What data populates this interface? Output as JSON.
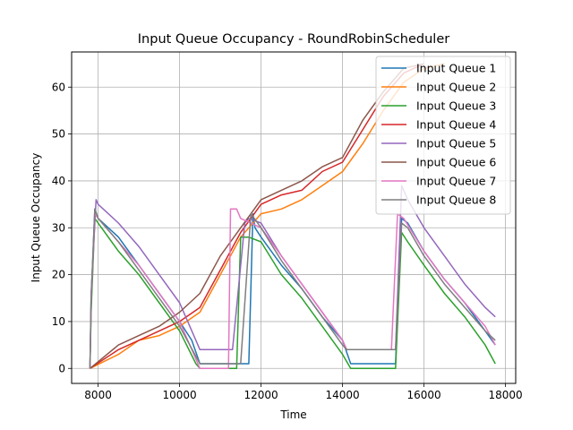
{
  "chart_data": {
    "type": "line",
    "title": "Input Queue Occupancy - RoundRobinScheduler",
    "xlabel": "Time",
    "ylabel": "Input Queue Occupancy",
    "xlim": [
      7350,
      18250
    ],
    "ylim": [
      -3.2,
      67.5
    ],
    "xticks": [
      8000,
      10000,
      12000,
      14000,
      16000,
      18000
    ],
    "yticks": [
      0,
      10,
      20,
      30,
      40,
      50,
      60
    ],
    "grid": true,
    "legend_position": "top-right",
    "series": [
      {
        "name": "Input Queue 1",
        "color": "#1f77b4",
        "points": [
          [
            7800,
            0
          ],
          [
            7830,
            15
          ],
          [
            7920,
            34
          ],
          [
            8000,
            32
          ],
          [
            8500,
            28
          ],
          [
            9000,
            22
          ],
          [
            9500,
            16
          ],
          [
            10000,
            10
          ],
          [
            10300,
            6
          ],
          [
            10500,
            1
          ],
          [
            11700,
            1
          ],
          [
            11800,
            33
          ],
          [
            11850,
            30
          ],
          [
            12000,
            28
          ],
          [
            12500,
            22
          ],
          [
            13000,
            17
          ],
          [
            13500,
            11
          ],
          [
            14000,
            6
          ],
          [
            14200,
            1
          ],
          [
            15300,
            1
          ],
          [
            15450,
            32
          ],
          [
            15600,
            31
          ],
          [
            16000,
            25
          ],
          [
            16500,
            19
          ],
          [
            17000,
            14
          ],
          [
            17500,
            8
          ],
          [
            17750,
            5
          ]
        ]
      },
      {
        "name": "Input Queue 2",
        "color": "#ff7f0e",
        "points": [
          [
            7800,
            0
          ],
          [
            8500,
            3
          ],
          [
            9000,
            6
          ],
          [
            9500,
            7
          ],
          [
            10000,
            9
          ],
          [
            10500,
            12
          ],
          [
            11000,
            20
          ],
          [
            11500,
            28
          ],
          [
            12000,
            33
          ],
          [
            12500,
            34
          ],
          [
            13000,
            36
          ],
          [
            13500,
            39
          ],
          [
            14000,
            42
          ],
          [
            14500,
            48
          ],
          [
            15000,
            55
          ],
          [
            15500,
            61
          ],
          [
            16000,
            64
          ],
          [
            16500,
            65
          ]
        ]
      },
      {
        "name": "Input Queue 3",
        "color": "#2ca02c",
        "points": [
          [
            7800,
            0
          ],
          [
            7830,
            12
          ],
          [
            7920,
            32
          ],
          [
            8000,
            31
          ],
          [
            8500,
            25
          ],
          [
            9000,
            20
          ],
          [
            9500,
            14
          ],
          [
            10000,
            8
          ],
          [
            10400,
            1
          ],
          [
            10500,
            0
          ],
          [
            11400,
            0
          ],
          [
            11500,
            28
          ],
          [
            11700,
            28
          ],
          [
            12000,
            27
          ],
          [
            12500,
            20
          ],
          [
            13000,
            15
          ],
          [
            13500,
            9
          ],
          [
            14000,
            3
          ],
          [
            14200,
            0
          ],
          [
            15300,
            0
          ],
          [
            15450,
            29
          ],
          [
            15600,
            27
          ],
          [
            16000,
            22
          ],
          [
            16500,
            16
          ],
          [
            17000,
            11
          ],
          [
            17500,
            5
          ],
          [
            17750,
            1
          ]
        ]
      },
      {
        "name": "Input Queue 4",
        "color": "#d62728",
        "points": [
          [
            7800,
            0
          ],
          [
            8500,
            4
          ],
          [
            9000,
            6
          ],
          [
            9500,
            8
          ],
          [
            10000,
            10
          ],
          [
            10500,
            13
          ],
          [
            11000,
            21
          ],
          [
            11500,
            29
          ],
          [
            12000,
            35
          ],
          [
            12500,
            37
          ],
          [
            13000,
            38
          ],
          [
            13500,
            42
          ],
          [
            14000,
            44
          ],
          [
            14500,
            51
          ],
          [
            15000,
            58
          ],
          [
            15500,
            63
          ],
          [
            16000,
            65
          ]
        ]
      },
      {
        "name": "Input Queue 5",
        "color": "#9467bd",
        "points": [
          [
            7800,
            0
          ],
          [
            7830,
            16
          ],
          [
            7950,
            36
          ],
          [
            8000,
            35
          ],
          [
            8500,
            31
          ],
          [
            9000,
            26
          ],
          [
            9500,
            20
          ],
          [
            10000,
            14
          ],
          [
            10500,
            4
          ],
          [
            11300,
            4
          ],
          [
            11600,
            31
          ],
          [
            11700,
            32
          ],
          [
            12000,
            31
          ],
          [
            12500,
            24
          ],
          [
            13000,
            18
          ],
          [
            13500,
            12
          ],
          [
            14000,
            6
          ],
          [
            14100,
            4
          ],
          [
            15300,
            4
          ],
          [
            15450,
            39
          ],
          [
            15600,
            36
          ],
          [
            16000,
            30
          ],
          [
            16500,
            24
          ],
          [
            17000,
            18
          ],
          [
            17500,
            13
          ],
          [
            17750,
            11
          ]
        ]
      },
      {
        "name": "Input Queue 6",
        "color": "#8c564b",
        "points": [
          [
            7800,
            0
          ],
          [
            8500,
            5
          ],
          [
            9000,
            7
          ],
          [
            9500,
            9
          ],
          [
            10000,
            12
          ],
          [
            10500,
            16
          ],
          [
            11000,
            24
          ],
          [
            11500,
            30
          ],
          [
            12000,
            36
          ],
          [
            12500,
            38
          ],
          [
            13000,
            40
          ],
          [
            13500,
            43
          ],
          [
            14000,
            45
          ],
          [
            14500,
            53
          ],
          [
            15000,
            59
          ],
          [
            15500,
            64
          ],
          [
            16000,
            65
          ]
        ]
      },
      {
        "name": "Input Queue 7",
        "color": "#e377c2",
        "points": [
          [
            7800,
            0
          ],
          [
            7830,
            14
          ],
          [
            7920,
            33
          ],
          [
            8000,
            32
          ],
          [
            8500,
            27
          ],
          [
            9000,
            22
          ],
          [
            9500,
            16
          ],
          [
            10000,
            10
          ],
          [
            10400,
            2
          ],
          [
            10500,
            0
          ],
          [
            11200,
            0
          ],
          [
            11250,
            34
          ],
          [
            11400,
            34
          ],
          [
            11500,
            32
          ],
          [
            12000,
            30
          ],
          [
            12500,
            24
          ],
          [
            13000,
            18
          ],
          [
            13500,
            12
          ],
          [
            14000,
            6
          ],
          [
            14100,
            4
          ],
          [
            15200,
            4
          ],
          [
            15350,
            33
          ],
          [
            15500,
            32
          ],
          [
            16000,
            25
          ],
          [
            16500,
            19
          ],
          [
            17000,
            14
          ],
          [
            17500,
            9
          ],
          [
            17750,
            5
          ]
        ]
      },
      {
        "name": "Input Queue 8",
        "color": "#7f7f7f",
        "points": [
          [
            7800,
            0
          ],
          [
            7830,
            15
          ],
          [
            7920,
            34
          ],
          [
            8000,
            32
          ],
          [
            8500,
            27
          ],
          [
            9000,
            21
          ],
          [
            9500,
            15
          ],
          [
            10000,
            9
          ],
          [
            10500,
            1
          ],
          [
            11500,
            1
          ],
          [
            11750,
            33
          ],
          [
            12000,
            30
          ],
          [
            12500,
            23
          ],
          [
            13000,
            17
          ],
          [
            13500,
            11
          ],
          [
            14000,
            5
          ],
          [
            14100,
            4
          ],
          [
            15300,
            4
          ],
          [
            15450,
            31
          ],
          [
            15600,
            30
          ],
          [
            16000,
            24
          ],
          [
            16500,
            18
          ],
          [
            17000,
            13
          ],
          [
            17500,
            8
          ],
          [
            17750,
            6
          ]
        ]
      }
    ]
  }
}
